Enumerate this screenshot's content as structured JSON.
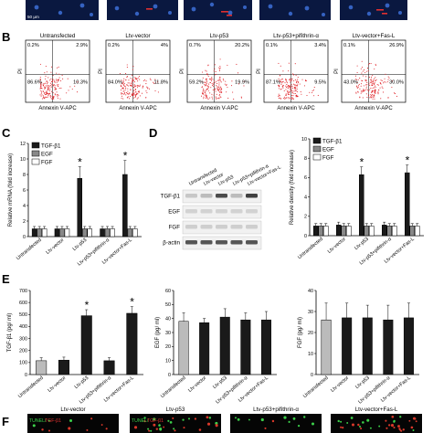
{
  "panels": {
    "B": "B",
    "C": "C",
    "D": "D",
    "E": "E",
    "F": "F"
  },
  "micro_top": {
    "scale": "50 μm"
  },
  "flow": {
    "ylabel": "PI",
    "xlabel": "Annexin V-APC",
    "plots": [
      {
        "title": "Untransfected",
        "q": [
          "0.2%",
          "2.9%",
          "86.6%",
          "10.3%"
        ]
      },
      {
        "title": "Ltv-vector",
        "q": [
          "0.2%",
          "4%",
          "84.0%",
          "11.8%"
        ]
      },
      {
        "title": "Ltv-p53",
        "q": [
          "0.7%",
          "20.2%",
          "59.2%",
          "19.9%"
        ]
      },
      {
        "title": "Ltv-p53+pifithrin-α",
        "q": [
          "0.1%",
          "3.4%",
          "87.1%",
          "9.5%"
        ]
      },
      {
        "title": "Ltv-vector+Fas-L",
        "q": [
          "0.1%",
          "26.9%",
          "43.0%",
          "30.0%"
        ]
      }
    ]
  },
  "chart_data": [
    {
      "type": "bar",
      "panel": "C",
      "ylabel": "Relative mRNA (fold increase)",
      "categories": [
        "Untransfected",
        "Ltv-vector",
        "Ltv-p53",
        "Ltv-p53+pifithrin-α",
        "Ltv-vector+Fas-L"
      ],
      "series": [
        {
          "name": "TGF-β1",
          "color": "#1a1a1a",
          "values": [
            1,
            1,
            7.5,
            1,
            8
          ],
          "err": [
            0.3,
            0.3,
            1.5,
            0.3,
            1.8
          ]
        },
        {
          "name": "EGF",
          "color": "#888888",
          "values": [
            1,
            1,
            1,
            1,
            1
          ],
          "err": [
            0.3,
            0.3,
            0.3,
            0.3,
            0.3
          ]
        },
        {
          "name": "FGF",
          "color": "#ffffff",
          "values": [
            1,
            1,
            1,
            1,
            1
          ],
          "err": [
            0.3,
            0.3,
            0.3,
            0.3,
            0.3
          ]
        }
      ],
      "ylim": [
        0,
        12
      ],
      "yticks": [
        0,
        2,
        4,
        6,
        8,
        10,
        12
      ],
      "significant": [
        2,
        4
      ],
      "star": "*"
    },
    {
      "type": "bar",
      "panel": "D",
      "ylabel": "Relative density (fold increase)",
      "categories": [
        "Untransfected",
        "Ltv-vector",
        "Ltv-p53",
        "Ltv-p53+pifithrin-α",
        "Ltv-vector+Fas-L"
      ],
      "series": [
        {
          "name": "TGF-β1",
          "color": "#1a1a1a",
          "values": [
            1,
            1.1,
            6.3,
            1.1,
            6.5
          ],
          "err": [
            0.25,
            0.3,
            0.8,
            0.3,
            0.8
          ]
        },
        {
          "name": "EGF",
          "color": "#888888",
          "values": [
            1,
            1,
            1,
            1,
            1
          ],
          "err": [
            0.25,
            0.25,
            0.25,
            0.25,
            0.25
          ]
        },
        {
          "name": "FGF",
          "color": "#ffffff",
          "values": [
            1,
            1,
            1,
            1,
            1
          ],
          "err": [
            0.25,
            0.25,
            0.25,
            0.25,
            0.25
          ]
        }
      ],
      "ylim": [
        0,
        10
      ],
      "yticks": [
        0,
        2,
        4,
        6,
        8,
        10
      ],
      "significant": [
        2,
        4
      ],
      "star": "*"
    },
    {
      "type": "bar",
      "panel": "E",
      "ylabel": "TGF-β1 (pg/ ml)",
      "categories": [
        "Untransfected",
        "Ltv-vector",
        "Ltv-p53",
        "Ltv-p53+pifithrin-α",
        "Ltv-vector+Fas-L"
      ],
      "values": [
        115,
        120,
        490,
        115,
        510
      ],
      "err": [
        25,
        25,
        50,
        25,
        55
      ],
      "colors": [
        "#bbbbbb",
        "#1a1a1a",
        "#1a1a1a",
        "#1a1a1a",
        "#1a1a1a"
      ],
      "ylim": [
        0,
        700
      ],
      "yticks": [
        0,
        100,
        200,
        300,
        400,
        500,
        600,
        700
      ],
      "significant": [
        2,
        4
      ],
      "star": "*"
    },
    {
      "type": "bar",
      "ylabel": "EGF (pg/ ml)",
      "categories": [
        "Untransfected",
        "Ltv-vector",
        "Ltv-p53",
        "Ltv-p53+pifithrin-α",
        "Ltv-vector+Fas-L"
      ],
      "values": [
        38,
        37,
        41,
        39,
        39
      ],
      "err": [
        6,
        3,
        6,
        5,
        6
      ],
      "colors": [
        "#bbbbbb",
        "#1a1a1a",
        "#1a1a1a",
        "#1a1a1a",
        "#1a1a1a"
      ],
      "ylim": [
        0,
        60
      ],
      "yticks": [
        0,
        10,
        20,
        30,
        40,
        50,
        60
      ]
    },
    {
      "type": "bar",
      "ylabel": "FGF (pg/ ml)",
      "categories": [
        "Untransfected",
        "Ltv-vector",
        "Ltv-p53",
        "Ltv-p53+pifithrin-α",
        "Ltv-vector+Fas-L"
      ],
      "values": [
        26,
        27,
        27,
        26,
        27
      ],
      "err": [
        8,
        7,
        6,
        7,
        7
      ],
      "colors": [
        "#bbbbbb",
        "#1a1a1a",
        "#1a1a1a",
        "#1a1a1a",
        "#1a1a1a"
      ],
      "ylim": [
        0,
        40
      ],
      "yticks": [
        0,
        10,
        20,
        30,
        40
      ]
    }
  ],
  "blot": {
    "lanes": [
      "Untransfected",
      "Ltv-vector",
      "Ltv-p53",
      "Ltv-p53+pifithrin-α",
      "Ltv-vector+Fas-L"
    ],
    "rows": [
      "TGF-β1",
      "EGF",
      "FGF",
      "β-actin"
    ]
  },
  "micro_bottom": {
    "titles": [
      "Ltv-vector",
      "Ltv-p53",
      "Ltv-p53+pifithrin-α",
      "Ltv-vector+Fas-L"
    ],
    "tunel": "TUNEL/",
    "tgf": "TGF-β1"
  }
}
